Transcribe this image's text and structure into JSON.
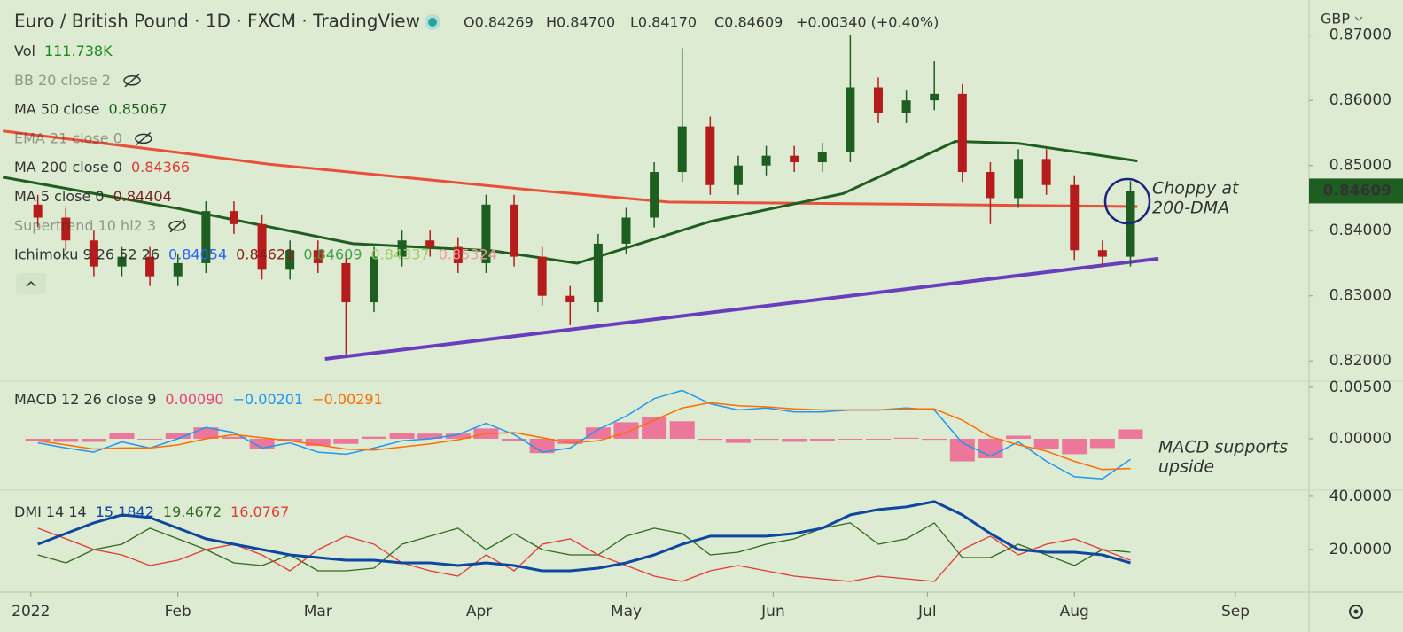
{
  "header": {
    "title": "Euro / British Pound · 1D · FXCM · TradingView",
    "ohlc": [
      "O0.84269",
      "H0.84700",
      "L0.84170",
      "C0.84609",
      "+0.00340 (+0.40%)"
    ],
    "currency": "GBP"
  },
  "chart_data": [
    {
      "type": "candlestick",
      "indicators": [
        {
          "label": "Vol",
          "values": [
            {
              "text": "111.738K",
              "color": "#1b8a1b"
            }
          ]
        },
        {
          "label": "BB 20 close 2",
          "hidden": true
        },
        {
          "label": "MA 50 close",
          "values": [
            {
              "text": "0.85067",
              "color": "#1b5e20"
            }
          ]
        },
        {
          "label": "EMA 21 close 0",
          "hidden": true
        },
        {
          "label": "MA 200 close 0",
          "values": [
            {
              "text": "0.84366",
              "color": "#e53935"
            }
          ]
        },
        {
          "label": "MA 5 close 0",
          "values": [
            {
              "text": "0.84404",
              "color": "#7b1f1f"
            }
          ]
        },
        {
          "label": "Supertrend 10 hl2 3",
          "hidden": true
        },
        {
          "label": "Ichimoku 9 26 52 26",
          "values": [
            {
              "text": "0.84054",
              "color": "#2962ff"
            },
            {
              "text": "0.84621",
              "color": "#8e1c1c"
            },
            {
              "text": "0.84609",
              "color": "#43a047"
            },
            {
              "text": "0.84337",
              "color": "#9ccc65"
            },
            {
              "text": "0.85324",
              "color": "#ef9a9a"
            }
          ]
        }
      ],
      "x": [
        1,
        5,
        9,
        13,
        17,
        21,
        25,
        29,
        33,
        37,
        41,
        45,
        49,
        53,
        57,
        61,
        65,
        69,
        73,
        77,
        81,
        85,
        89,
        93,
        97,
        101,
        105,
        109,
        113,
        117,
        121,
        125,
        129,
        133,
        137,
        141,
        145,
        149,
        153,
        157
      ],
      "open": [
        0.844,
        0.842,
        0.8385,
        0.8345,
        0.836,
        0.833,
        0.835,
        0.843,
        0.841,
        0.834,
        0.837,
        0.835,
        0.829,
        0.836,
        0.8385,
        0.8375,
        0.835,
        0.844,
        0.836,
        0.83,
        0.829,
        0.838,
        0.842,
        0.849,
        0.856,
        0.847,
        0.85,
        0.8515,
        0.8505,
        0.852,
        0.862,
        0.858,
        0.86,
        0.861,
        0.849,
        0.845,
        0.851,
        0.847,
        0.837,
        0.836
      ],
      "high": [
        0.8455,
        0.8435,
        0.84,
        0.8375,
        0.8375,
        0.8365,
        0.8445,
        0.8445,
        0.8425,
        0.8385,
        0.8385,
        0.8365,
        0.8375,
        0.84,
        0.84,
        0.839,
        0.8455,
        0.8455,
        0.8375,
        0.8315,
        0.8395,
        0.8435,
        0.8505,
        0.868,
        0.8575,
        0.8515,
        0.853,
        0.853,
        0.8535,
        0.87,
        0.8635,
        0.8615,
        0.866,
        0.8625,
        0.8505,
        0.8525,
        0.8525,
        0.8485,
        0.8385,
        0.8476
      ],
      "low": [
        0.8405,
        0.837,
        0.833,
        0.833,
        0.8315,
        0.8315,
        0.8335,
        0.8395,
        0.8325,
        0.8325,
        0.8335,
        0.821,
        0.8275,
        0.8345,
        0.836,
        0.8335,
        0.8335,
        0.8345,
        0.8285,
        0.8255,
        0.8275,
        0.8365,
        0.8405,
        0.8475,
        0.8455,
        0.8455,
        0.8485,
        0.849,
        0.849,
        0.8505,
        0.8565,
        0.8565,
        0.8585,
        0.8475,
        0.841,
        0.8435,
        0.8455,
        0.8355,
        0.8345,
        0.8345
      ],
      "close": [
        0.842,
        0.8385,
        0.8345,
        0.836,
        0.833,
        0.835,
        0.843,
        0.841,
        0.834,
        0.837,
        0.835,
        0.829,
        0.836,
        0.8385,
        0.8375,
        0.835,
        0.844,
        0.836,
        0.83,
        0.829,
        0.838,
        0.842,
        0.849,
        0.856,
        0.847,
        0.85,
        0.8515,
        0.8505,
        0.852,
        0.862,
        0.858,
        0.86,
        0.861,
        0.849,
        0.845,
        0.851,
        0.847,
        0.837,
        0.836,
        0.8461
      ],
      "up_color": "#1e5e20",
      "down_color": "#b71c1c",
      "series": [
        {
          "color": "#e8503a",
          "x": [
            -4,
            21,
            34,
            72,
            91,
            122,
            158
          ],
          "values": [
            0.8553,
            0.852,
            0.8502,
            0.8462,
            0.8444,
            0.8441,
            0.8437
          ]
        },
        {
          "color": "#1f5e1f",
          "x": [
            -4,
            21,
            46,
            66,
            78,
            97,
            116,
            132,
            141,
            158
          ],
          "values": [
            0.8482,
            0.8434,
            0.838,
            0.8369,
            0.835,
            0.8414,
            0.8457,
            0.8537,
            0.8534,
            0.8507
          ]
        },
        {
          "color": "#6a3dbf",
          "x": [
            42,
            161
          ],
          "values": [
            0.8203,
            0.8357
          ]
        }
      ],
      "last_value": 0.84609,
      "annotation": [
        "Choppy at",
        "200-DMA"
      ],
      "xlim": [
        -4.4,
        182.5
      ],
      "ylim": [
        0.8169,
        0.8754
      ],
      "yticks": [
        {
          "value": 0.82,
          "label": "0.82000"
        },
        {
          "value": 0.83,
          "label": "0.83000"
        },
        {
          "value": 0.84,
          "label": "0.84000"
        },
        {
          "value": 0.85,
          "label": "0.85000"
        },
        {
          "value": 0.86,
          "label": "0.86000"
        },
        {
          "value": 0.87,
          "label": "0.87000"
        }
      ],
      "grid": false
    },
    {
      "type": "macd",
      "indicators": [
        {
          "label": "MACD 12 26 close 9",
          "values": [
            {
              "text": "0.00090",
              "color": "#ec407a"
            },
            {
              "text": "−0.00201",
              "color": "#2196f3"
            },
            {
              "text": "−0.00291",
              "color": "#ff6d00"
            }
          ]
        }
      ],
      "x": [
        1,
        5,
        9,
        13,
        17,
        21,
        25,
        29,
        33,
        37,
        41,
        45,
        49,
        53,
        57,
        61,
        65,
        69,
        73,
        77,
        81,
        85,
        89,
        93,
        97,
        101,
        105,
        109,
        113,
        117,
        121,
        125,
        129,
        133,
        137,
        141,
        145,
        149,
        153,
        157
      ],
      "series": [
        {
          "style": "histogram",
          "color": "#f06292",
          "values": [
            -0.0002,
            -0.0003,
            -0.0003,
            0.0006,
            0.0,
            0.0006,
            0.0011,
            0.0002,
            -0.001,
            -0.0002,
            -0.0007,
            -0.0005,
            0.0002,
            0.0006,
            0.0005,
            0.0005,
            0.001,
            -0.0002,
            -0.0014,
            -0.0005,
            0.0011,
            0.0016,
            0.0021,
            0.0017,
            -0.0001,
            -0.0004,
            -0.0001,
            -0.0003,
            -0.0002,
            0.0,
            0.0,
            0.0001,
            -0.0001,
            -0.0022,
            -0.0019,
            0.0003,
            -0.001,
            -0.0015,
            -0.0009,
            0.0009
          ]
        },
        {
          "style": "line",
          "color": "#2196f3",
          "values": [
            -0.0004,
            -0.0009,
            -0.0013,
            -0.0003,
            -0.0009,
            0.0,
            0.0011,
            0.0006,
            -0.0009,
            -0.0004,
            -0.0013,
            -0.0015,
            -0.0009,
            -0.0002,
            0.0,
            0.0004,
            0.0015,
            0.0004,
            -0.0013,
            -0.0009,
            0.0009,
            0.0022,
            0.0039,
            0.0047,
            0.0034,
            0.0028,
            0.003,
            0.0026,
            0.0026,
            0.0028,
            0.0028,
            0.003,
            0.0028,
            -0.0004,
            -0.0017,
            -0.0003,
            -0.0022,
            -0.0037,
            -0.0039,
            -0.002
          ]
        },
        {
          "style": "line",
          "color": "#ff6d00",
          "values": [
            -0.0002,
            -0.0006,
            -0.001,
            -0.0009,
            -0.0009,
            -0.0006,
            0.0,
            0.0004,
            0.0001,
            -0.0002,
            -0.0006,
            -0.001,
            -0.0011,
            -0.0008,
            -0.0005,
            -0.0001,
            0.0005,
            0.0006,
            0.0001,
            -0.0004,
            -0.0002,
            0.0006,
            0.0018,
            0.003,
            0.0035,
            0.0032,
            0.0031,
            0.0029,
            0.0028,
            0.0028,
            0.0028,
            0.0029,
            0.0029,
            0.0018,
            0.0002,
            -0.0006,
            -0.0012,
            -0.0022,
            -0.003,
            -0.0029
          ]
        }
      ],
      "annotation": [
        "MACD supports",
        "upside"
      ],
      "xlim": [
        -4.4,
        182.5
      ],
      "ylim": [
        -0.005,
        0.0056
      ],
      "yticks": [
        {
          "value": 0,
          "label": "0.00000"
        },
        {
          "value": 0.005,
          "label": "0.00500"
        }
      ]
    },
    {
      "type": "line",
      "indicators": [
        {
          "label": "DMI 14 14",
          "values": [
            {
              "text": "15.1842",
              "color": "#0d47a1"
            },
            {
              "text": "19.4672",
              "color": "#33691e"
            },
            {
              "text": "16.0767",
              "color": "#e53935"
            }
          ]
        }
      ],
      "x": [
        1,
        5,
        9,
        13,
        17,
        21,
        25,
        29,
        33,
        37,
        41,
        45,
        49,
        53,
        57,
        61,
        65,
        69,
        73,
        77,
        81,
        85,
        89,
        93,
        97,
        101,
        105,
        109,
        113,
        117,
        121,
        125,
        129,
        133,
        137,
        141,
        145,
        149,
        153,
        157
      ],
      "series": [
        {
          "color": "#33691e",
          "values": [
            18,
            15,
            20,
            22,
            28,
            24,
            20,
            15,
            14,
            18,
            12,
            12,
            13,
            22,
            25,
            28,
            20,
            26,
            20,
            18,
            18,
            25,
            28,
            26,
            18,
            19,
            22,
            24,
            28,
            30,
            22,
            24,
            30,
            17,
            17,
            22,
            18,
            14,
            20,
            19
          ]
        },
        {
          "color": "#e53935",
          "values": [
            28,
            24,
            20,
            18,
            14,
            16,
            20,
            22,
            18,
            12,
            20,
            25,
            22,
            15,
            12,
            10,
            18,
            12,
            22,
            24,
            18,
            14,
            10,
            8,
            12,
            14,
            12,
            10,
            9,
            8,
            10,
            9,
            8,
            20,
            25,
            18,
            22,
            24,
            20,
            16
          ]
        },
        {
          "color": "#0d47a1",
          "values": [
            22,
            26,
            30,
            33,
            32,
            28,
            24,
            22,
            20,
            18,
            17,
            16,
            16,
            15,
            15,
            14,
            15,
            14,
            12,
            12,
            13,
            15,
            18,
            22,
            25,
            25,
            25,
            26,
            28,
            33,
            35,
            36,
            38,
            33,
            26,
            20,
            19,
            19,
            18,
            15
          ]
        }
      ],
      "xlim": [
        -4.4,
        182.5
      ],
      "ylim": [
        4,
        42.3
      ],
      "yticks": [
        {
          "value": 20,
          "label": "20.0000"
        },
        {
          "value": 40,
          "label": "40.0000"
        }
      ],
      "xticks": [
        {
          "value": 0,
          "label": "2022"
        },
        {
          "value": 21,
          "label": "Feb"
        },
        {
          "value": 41,
          "label": "Mar"
        },
        {
          "value": 64,
          "label": "Apr"
        },
        {
          "value": 85,
          "label": "May"
        },
        {
          "value": 106,
          "label": "Jun"
        },
        {
          "value": 128,
          "label": "Jul"
        },
        {
          "value": 149,
          "label": "Aug"
        },
        {
          "value": 172,
          "label": "Sep"
        }
      ]
    }
  ]
}
